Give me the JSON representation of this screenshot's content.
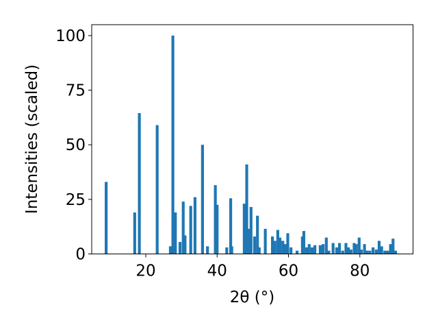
{
  "chart_data": {
    "type": "bar",
    "title": "",
    "xlabel": "2θ (°)",
    "ylabel": "Intensities (scaled)",
    "xlim": [
      4.85,
      94.9
    ],
    "ylim": [
      0,
      105
    ],
    "xticks": [
      20,
      40,
      60,
      80
    ],
    "yticks": [
      0,
      25,
      50,
      75,
      100
    ],
    "grid": false,
    "bar_color": "#1f77b4",
    "bar_width": 0.8,
    "x": [
      8.9,
      16.9,
      18.2,
      23.2,
      26.9,
      27.6,
      28.3,
      29.6,
      30.5,
      31.0,
      32.6,
      33.8,
      35.9,
      37.3,
      39.5,
      40.0,
      42.7,
      43.8,
      44.1,
      47.6,
      48.3,
      48.8,
      49.5,
      50.5,
      51.3,
      51.8,
      53.5,
      55.5,
      56.2,
      57.0,
      57.6,
      58.4,
      59.1,
      59.8,
      60.7,
      62.4,
      63.9,
      64.3,
      65.1,
      65.8,
      66.6,
      67.4,
      68.9,
      69.7,
      70.6,
      71.3,
      72.5,
      73.5,
      74.3,
      75.2,
      76.1,
      76.8,
      77.5,
      78.4,
      79.0,
      79.8,
      80.4,
      81.3,
      82.0,
      82.8,
      83.7,
      84.6,
      85.4,
      86.1,
      87.0,
      87.8,
      88.6,
      89.3,
      90.0
    ],
    "values": [
      33,
      19,
      64.5,
      59,
      3.5,
      100,
      19,
      5.5,
      24,
      8.5,
      22,
      26,
      50,
      3.5,
      31.5,
      22.5,
      3,
      25.5,
      3.5,
      23,
      41,
      11.5,
      21.5,
      8,
      17.5,
      3,
      11.5,
      8,
      6,
      11,
      7.5,
      6,
      4.5,
      9.5,
      3,
      1.5,
      8,
      10.5,
      3,
      4.5,
      3,
      4,
      4,
      4.5,
      7.5,
      1.5,
      5,
      3,
      5,
      1.5,
      5,
      3,
      2,
      5,
      4.5,
      7.5,
      2,
      4.5,
      1.5,
      1.5,
      3,
      2,
      6,
      3.5,
      1.5,
      1.5,
      4.5,
      7,
      1.5
    ]
  }
}
